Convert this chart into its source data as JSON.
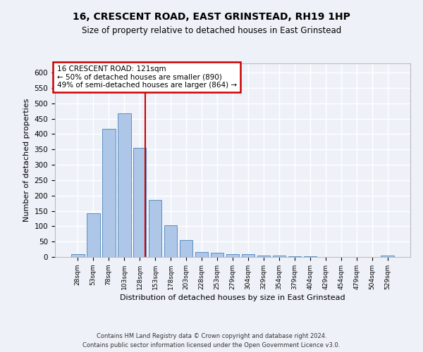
{
  "title": "16, CRESCENT ROAD, EAST GRINSTEAD, RH19 1HP",
  "subtitle": "Size of property relative to detached houses in East Grinstead",
  "xlabel": "Distribution of detached houses by size in East Grinstead",
  "ylabel": "Number of detached properties",
  "bin_labels": [
    "28sqm",
    "53sqm",
    "78sqm",
    "103sqm",
    "128sqm",
    "153sqm",
    "178sqm",
    "203sqm",
    "228sqm",
    "253sqm",
    "279sqm",
    "304sqm",
    "329sqm",
    "354sqm",
    "379sqm",
    "404sqm",
    "429sqm",
    "454sqm",
    "479sqm",
    "504sqm",
    "529sqm"
  ],
  "bar_values": [
    10,
    143,
    416,
    468,
    355,
    186,
    102,
    54,
    16,
    13,
    10,
    9,
    4,
    4,
    3,
    2,
    0,
    0,
    0,
    0,
    4
  ],
  "bar_color": "#aec6e8",
  "bar_edge_color": "#5a8fc0",
  "vline_bin_index": 4,
  "annotation_text_line1": "16 CRESCENT ROAD: 121sqm",
  "annotation_text_line2": "← 50% of detached houses are smaller (890)",
  "annotation_text_line3": "49% of semi-detached houses are larger (864) →",
  "annotation_box_color": "#ffffff",
  "annotation_box_edge": "#cc0000",
  "vline_color": "#cc0000",
  "ylim": [
    0,
    630
  ],
  "yticks": [
    0,
    50,
    100,
    150,
    200,
    250,
    300,
    350,
    400,
    450,
    500,
    550,
    600
  ],
  "footer_line1": "Contains HM Land Registry data © Crown copyright and database right 2024.",
  "footer_line2": "Contains public sector information licensed under the Open Government Licence v3.0.",
  "background_color": "#eef2f8",
  "grid_color": "#ffffff"
}
